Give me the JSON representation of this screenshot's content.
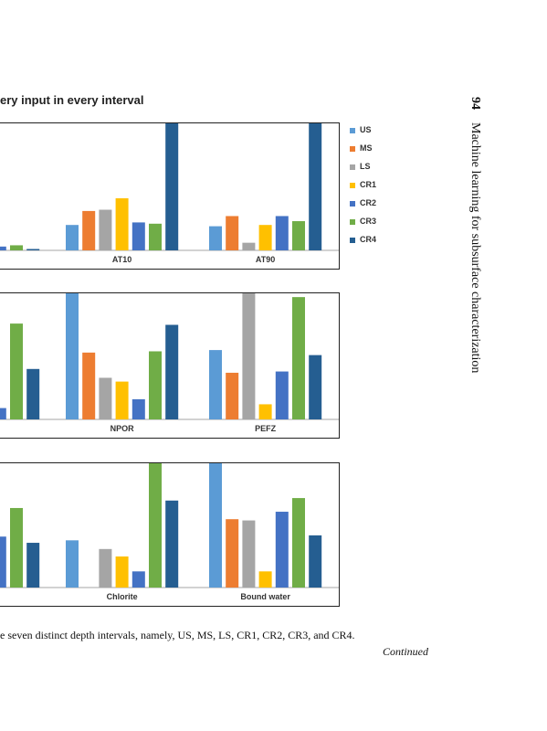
{
  "header": {
    "chart_heading": "ery input in every interval",
    "page_number": "94",
    "running_title": "Machine learning for subsurface characterization"
  },
  "legend": [
    {
      "label": "US",
      "color": "#5B9BD5"
    },
    {
      "label": "MS",
      "color": "#ED7D31"
    },
    {
      "label": "LS",
      "color": "#A5A5A5"
    },
    {
      "label": "CR1",
      "color": "#FFC000"
    },
    {
      "label": "CR2",
      "color": "#4472C4"
    },
    {
      "label": "CR3",
      "color": "#70AD47"
    },
    {
      "label": "CR4",
      "color": "#255E91"
    }
  ],
  "chart_data": [
    {
      "type": "bar",
      "series_names": [
        "US",
        "MS",
        "LS",
        "CR1",
        "CR2",
        "CR3",
        "CR4"
      ],
      "categories": [
        {
          "label": "",
          "values": [
            null,
            null,
            null,
            null,
            0.03,
            0.04,
            0.01
          ],
          "partial": true
        },
        {
          "label": "AT10",
          "values": [
            0.2,
            0.31,
            0.32,
            0.41,
            0.22,
            0.21,
            1.0
          ]
        },
        {
          "label": "AT90",
          "values": [
            0.19,
            0.27,
            0.06,
            0.2,
            0.27,
            0.23,
            1.0
          ]
        }
      ],
      "ylim": [
        0,
        1
      ]
    },
    {
      "type": "bar",
      "series_names": [
        "US",
        "MS",
        "LS",
        "CR1",
        "CR2",
        "CR3",
        "CR4"
      ],
      "categories": [
        {
          "label": "",
          "values": [
            null,
            null,
            null,
            null,
            0.09,
            0.76,
            0.4
          ],
          "partial": true
        },
        {
          "label": "NPOR",
          "values": [
            1.0,
            0.53,
            0.33,
            0.3,
            0.16,
            0.54,
            0.75
          ]
        },
        {
          "label": "PEFZ",
          "values": [
            0.55,
            0.37,
            1.0,
            0.12,
            0.38,
            0.97,
            0.51
          ]
        }
      ],
      "ylim": [
        0,
        1
      ]
    },
    {
      "type": "bar",
      "series_names": [
        "US",
        "MS",
        "LS",
        "CR1",
        "CR2",
        "CR3",
        "CR4"
      ],
      "categories": [
        {
          "label": "",
          "values": [
            null,
            null,
            null,
            null,
            0.41,
            0.64,
            0.36
          ],
          "partial": true
        },
        {
          "label": "Chlorite",
          "values": [
            0.38,
            0.0,
            0.31,
            0.25,
            0.13,
            1.0,
            0.7
          ]
        },
        {
          "label": "Bound water",
          "values": [
            1.0,
            0.55,
            0.54,
            0.13,
            0.61,
            0.72,
            0.42
          ]
        }
      ],
      "ylim": [
        0,
        1
      ]
    }
  ],
  "caption": {
    "text": "e seven distinct depth intervals, namely, US, MS, LS, CR1, CR2, CR3, and CR4.",
    "continued": "Continued"
  }
}
